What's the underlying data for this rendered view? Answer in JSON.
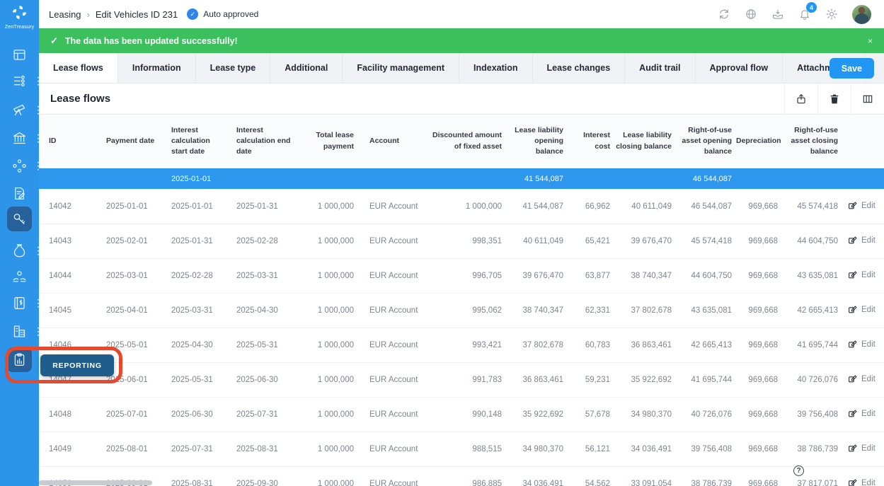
{
  "colors": {
    "accent": "#2196f3",
    "sidebar_blue": "#2d95e9",
    "success_green": "#3cc05e",
    "summary_row_blue": "#2d97ee",
    "tooltip_navy": "#1f5d8d",
    "annotation_red": "#e64a2e"
  },
  "brand": {
    "name": "ZenTreasury"
  },
  "topbar": {
    "breadcrumb_root": "Leasing",
    "breadcrumb_sep": "›",
    "breadcrumb_current": "Edit Vehicles ID 231",
    "approval_check": "✓",
    "approval_badge": "Auto approved",
    "notification_count": "4",
    "icons": [
      "refresh-icon",
      "globe-icon",
      "inbox-icon",
      "bell-icon",
      "gear-icon",
      "avatar"
    ]
  },
  "banner": {
    "check": "✓",
    "message": "The data has been updated successfully!",
    "close": "×"
  },
  "tabs": {
    "items": [
      {
        "label": "Lease flows",
        "active": true
      },
      {
        "label": "Information",
        "active": false
      },
      {
        "label": "Lease type",
        "active": false
      },
      {
        "label": "Additional",
        "active": false
      },
      {
        "label": "Facility management",
        "active": false
      },
      {
        "label": "Indexation",
        "active": false
      },
      {
        "label": "Lease changes",
        "active": false
      },
      {
        "label": "Audit trail",
        "active": false
      },
      {
        "label": "Approval flow",
        "active": false
      },
      {
        "label": "Attachments",
        "active": false
      }
    ],
    "save_label": "Save"
  },
  "section": {
    "title": "Lease flows",
    "icons": [
      "export-icon",
      "trash-icon",
      "columns-icon"
    ]
  },
  "table": {
    "columns": [
      "ID",
      "Payment date",
      "Interest calculation start date",
      "Interest calculation end date",
      "Total lease payment",
      "Account",
      "Discounted amount of fixed asset",
      "Lease liability opening balance",
      "Interest cost",
      "Lease liability closing balance",
      "Right-of-use asset opening balance",
      "Depreciation",
      "Right-of-use asset closing balance",
      ""
    ],
    "summary_row": {
      "interest_calc_start": "2025-01-01",
      "liability_opening": "41 544,087",
      "rou_opening": "46 544,087"
    },
    "edit_label": "Edit",
    "rows": [
      {
        "id": "14042",
        "payment_date": "2025-01-01",
        "interest_calc_start": "2025-01-01",
        "interest_calc_end": "2025-01-31",
        "total_lease_payment": "1 000,000",
        "account": "EUR Account",
        "discounted_amount": "1 000,000",
        "liability_opening": "41 544,087",
        "interest_cost": "66,962",
        "liability_closing": "40 611,049",
        "rou_opening": "46 544,087",
        "depreciation": "969,668",
        "rou_closing": "45 574,418"
      },
      {
        "id": "14043",
        "payment_date": "2025-02-01",
        "interest_calc_start": "2025-01-31",
        "interest_calc_end": "2025-02-28",
        "total_lease_payment": "1 000,000",
        "account": "EUR Account",
        "discounted_amount": "998,351",
        "liability_opening": "40 611,049",
        "interest_cost": "65,421",
        "liability_closing": "39 676,470",
        "rou_opening": "45 574,418",
        "depreciation": "969,668",
        "rou_closing": "44 604,750"
      },
      {
        "id": "14044",
        "payment_date": "2025-03-01",
        "interest_calc_start": "2025-02-28",
        "interest_calc_end": "2025-03-31",
        "total_lease_payment": "1 000,000",
        "account": "EUR Account",
        "discounted_amount": "996,705",
        "liability_opening": "39 676,470",
        "interest_cost": "63,877",
        "liability_closing": "38 740,347",
        "rou_opening": "44 604,750",
        "depreciation": "969,668",
        "rou_closing": "43 635,081"
      },
      {
        "id": "14045",
        "payment_date": "2025-04-01",
        "interest_calc_start": "2025-03-31",
        "interest_calc_end": "2025-04-30",
        "total_lease_payment": "1 000,000",
        "account": "EUR Account",
        "discounted_amount": "995,062",
        "liability_opening": "38 740,347",
        "interest_cost": "62,331",
        "liability_closing": "37 802,678",
        "rou_opening": "43 635,081",
        "depreciation": "969,668",
        "rou_closing": "42 665,413"
      },
      {
        "id": "14046",
        "payment_date": "2025-05-01",
        "interest_calc_start": "2025-04-30",
        "interest_calc_end": "2025-05-31",
        "total_lease_payment": "1 000,000",
        "account": "EUR Account",
        "discounted_amount": "993,421",
        "liability_opening": "37 802,678",
        "interest_cost": "60,783",
        "liability_closing": "36 863,461",
        "rou_opening": "42 665,413",
        "depreciation": "969,668",
        "rou_closing": "41 695,744"
      },
      {
        "id": "14047",
        "payment_date": "2025-06-01",
        "interest_calc_start": "2025-05-31",
        "interest_calc_end": "2025-06-30",
        "total_lease_payment": "1 000,000",
        "account": "EUR Account",
        "discounted_amount": "991,783",
        "liability_opening": "36 863,461",
        "interest_cost": "59,231",
        "liability_closing": "35 922,692",
        "rou_opening": "41 695,744",
        "depreciation": "969,668",
        "rou_closing": "40 726,076"
      },
      {
        "id": "14048",
        "payment_date": "2025-07-01",
        "interest_calc_start": "2025-06-30",
        "interest_calc_end": "2025-07-31",
        "total_lease_payment": "1 000,000",
        "account": "EUR Account",
        "discounted_amount": "990,148",
        "liability_opening": "35 922,692",
        "interest_cost": "57,678",
        "liability_closing": "34 980,370",
        "rou_opening": "40 726,076",
        "depreciation": "969,668",
        "rou_closing": "39 756,408"
      },
      {
        "id": "14049",
        "payment_date": "2025-08-01",
        "interest_calc_start": "2025-07-31",
        "interest_calc_end": "2025-08-31",
        "total_lease_payment": "1 000,000",
        "account": "EUR Account",
        "discounted_amount": "988,515",
        "liability_opening": "34 980,370",
        "interest_cost": "56,121",
        "liability_closing": "34 036,491",
        "rou_opening": "39 756,408",
        "depreciation": "969,668",
        "rou_closing": "38 786,739"
      },
      {
        "id": "14050",
        "payment_date": "2025-09-01",
        "interest_calc_start": "2025-08-31",
        "interest_calc_end": "2025-09-30",
        "total_lease_payment": "1 000,000",
        "account": "EUR Account",
        "discounted_amount": "986,885",
        "liability_opening": "34 036,491",
        "interest_cost": "54,562",
        "liability_closing": "33 091,054",
        "rou_opening": "38 786,739",
        "depreciation": "969,668",
        "rou_closing": "37 817,071"
      }
    ]
  },
  "sidebar": {
    "items": [
      {
        "name": "dashboard",
        "dots": false,
        "state": ""
      },
      {
        "name": "entities-list",
        "dots": true,
        "state": ""
      },
      {
        "name": "market-telescope",
        "dots": true,
        "state": ""
      },
      {
        "name": "bank",
        "dots": true,
        "state": ""
      },
      {
        "name": "network",
        "dots": true,
        "state": ""
      },
      {
        "name": "document-edit",
        "dots": false,
        "state": ""
      },
      {
        "name": "leasing-key",
        "dots": false,
        "state": "active"
      },
      {
        "name": "money-bag",
        "dots": true,
        "state": ""
      },
      {
        "name": "custody-hands",
        "dots": false,
        "state": ""
      },
      {
        "name": "ledger",
        "dots": true,
        "state": ""
      },
      {
        "name": "company-buildings",
        "dots": true,
        "state": ""
      },
      {
        "name": "reporting",
        "dots": false,
        "state": "hovered"
      }
    ]
  },
  "tooltip": {
    "label": "REPORTING"
  },
  "misc": {
    "help_label": "?"
  }
}
